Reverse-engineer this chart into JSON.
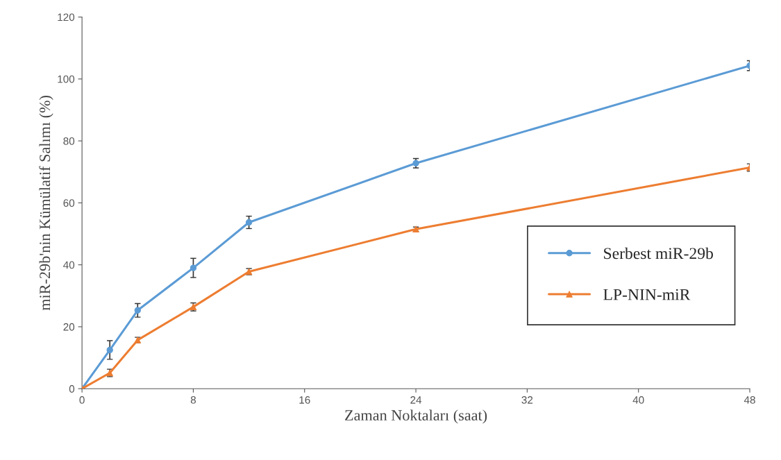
{
  "chart_data": {
    "type": "line",
    "xlabel": "Zaman Noktaları (saat)",
    "ylabel": "miR-29b'nin Kümülatif Salımı (%)",
    "x": [
      0,
      2,
      4,
      8,
      12,
      24,
      48
    ],
    "series": [
      {
        "name": "Serbest miR-29b",
        "color": "#5b9bd5",
        "marker": "circle",
        "values": [
          0,
          12.5,
          25.3,
          39,
          53.7,
          72.8,
          104.3
        ],
        "errors": [
          0,
          3,
          2.2,
          3.1,
          2,
          1.5,
          1.6
        ]
      },
      {
        "name": "LP-NIN-miR",
        "color": "#ed7d31",
        "marker": "triangle",
        "values": [
          0,
          5.1,
          15.7,
          26.4,
          37.8,
          51.5,
          71.4
        ],
        "errors": [
          0,
          1.2,
          0.9,
          1.3,
          1,
          0.7,
          1.2
        ]
      }
    ],
    "xlim": [
      0,
      48
    ],
    "xticks": [
      0,
      8,
      16,
      24,
      32,
      40,
      48
    ],
    "ylim": [
      0,
      120
    ],
    "yticks": [
      0,
      20,
      40,
      60,
      80,
      100,
      120
    ],
    "grid": false,
    "legend": "lower right"
  }
}
